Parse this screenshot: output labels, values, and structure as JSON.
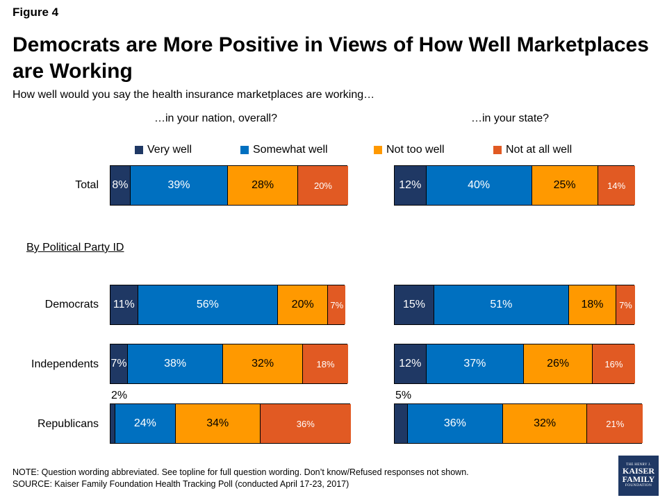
{
  "figure_label": "Figure 4",
  "title": "Democrats are More Positive in Views of How Well Marketplaces are Working",
  "subtitle": "How well would you say the health insurance marketplaces are working…",
  "group_label": "By Political Party ID",
  "note": "NOTE: Question wording abbreviated. See topline for full question wording. Don’t know/Refused responses not shown.",
  "source": "SOURCE: Kaiser Family Foundation Health Tracking Poll (conducted April 17-23, 2017)",
  "logo": {
    "line1": "THE HENRY J.",
    "line2a": "KAISER",
    "line2b": "FAMILY",
    "line3": "FOUNDATION"
  },
  "colors": {
    "very_well": "#1f3864",
    "somewhat_well": "#0070c0",
    "not_too_well": "#ff9900",
    "not_at_all_well": "#e15a23"
  },
  "chart_data": [
    {
      "type": "bar",
      "orientation": "horizontal",
      "stacked": true,
      "title": "…in your nation, overall?",
      "categories": [
        "Total",
        "Democrats",
        "Independents",
        "Republicans"
      ],
      "series": [
        {
          "name": "Very well",
          "values": [
            8,
            11,
            7,
            2
          ],
          "labels": [
            "8%",
            "11%",
            "7%",
            "2%"
          ]
        },
        {
          "name": "Somewhat well",
          "values": [
            39,
            56,
            38,
            24
          ],
          "labels": [
            "39%",
            "56%",
            "38%",
            "24%"
          ]
        },
        {
          "name": "Not too well",
          "values": [
            28,
            20,
            32,
            34
          ],
          "labels": [
            "28%",
            "20%",
            "32%",
            "34%"
          ]
        },
        {
          "name": "Not at all well",
          "values": [
            20,
            7,
            18,
            36
          ],
          "labels": [
            "20%",
            "7%",
            "18%",
            "36%"
          ]
        }
      ],
      "legend": "top"
    },
    {
      "type": "bar",
      "orientation": "horizontal",
      "stacked": true,
      "title": "…in your state?",
      "categories": [
        "Total",
        "Democrats",
        "Independents",
        "Republicans"
      ],
      "series": [
        {
          "name": "Very well",
          "values": [
            12,
            15,
            12,
            5
          ],
          "labels": [
            "12%",
            "15%",
            "12%",
            "5%"
          ]
        },
        {
          "name": "Somewhat well",
          "values": [
            40,
            51,
            37,
            36
          ],
          "labels": [
            "40%",
            "51%",
            "37%",
            "36%"
          ]
        },
        {
          "name": "Not too well",
          "values": [
            25,
            18,
            26,
            32
          ],
          "labels": [
            "25%",
            "18%",
            "26%",
            "32%"
          ]
        },
        {
          "name": "Not at all well",
          "values": [
            14,
            7,
            16,
            21
          ],
          "labels": [
            "14%",
            "7%",
            "16%",
            "21%"
          ]
        }
      ],
      "legend": "top"
    }
  ]
}
